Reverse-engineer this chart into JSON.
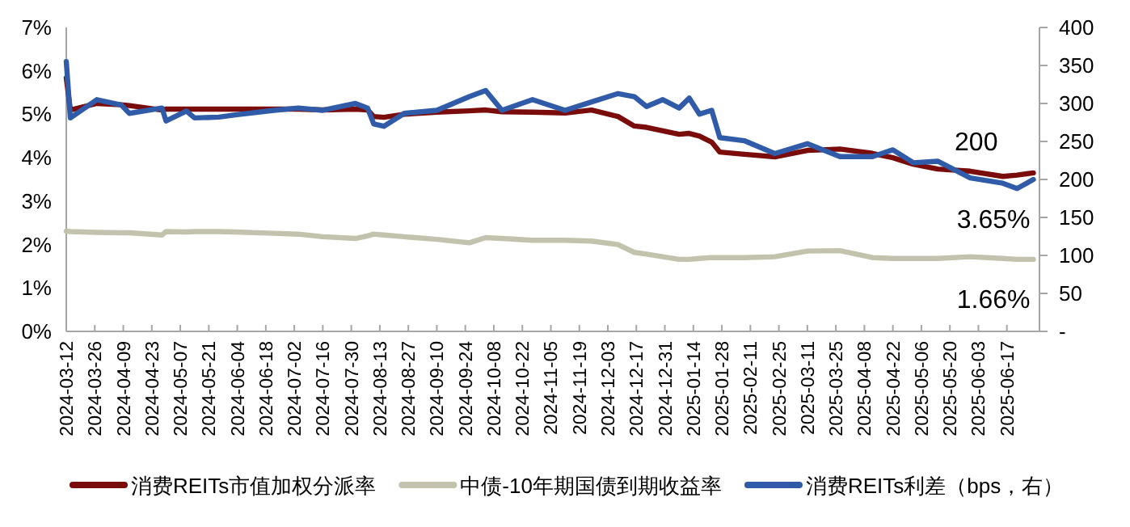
{
  "chart_data": {
    "type": "line",
    "x": [
      "2024-03-12",
      "2024-03-14",
      "2024-03-27",
      "2024-04-08",
      "2024-04-12",
      "2024-04-28",
      "2024-04-30",
      "2024-05-10",
      "2024-05-14",
      "2024-05-26",
      "2024-06-03",
      "2024-06-22",
      "2024-07-04",
      "2024-07-16",
      "2024-08-01",
      "2024-08-07",
      "2024-08-10",
      "2024-08-15",
      "2024-08-25",
      "2024-09-10",
      "2024-09-26",
      "2024-10-04",
      "2024-10-12",
      "2024-10-27",
      "2024-11-12",
      "2024-11-25",
      "2024-12-08",
      "2024-12-16",
      "2024-12-22",
      "2024-12-30",
      "2025-01-07",
      "2025-01-12",
      "2025-01-17",
      "2025-01-23",
      "2025-01-27",
      "2025-02-08",
      "2025-02-23",
      "2025-03-11",
      "2025-03-27",
      "2025-04-12",
      "2025-04-22",
      "2025-05-02",
      "2025-05-14",
      "2025-05-30",
      "2025-06-15",
      "2025-06-22",
      "2025-06-30"
    ],
    "series": [
      {
        "name": "消费REITs市值加权分派率",
        "color": "#7b0c0c",
        "values": [
          5.84,
          5.1,
          5.25,
          5.22,
          5.2,
          5.1,
          5.12,
          5.12,
          5.12,
          5.12,
          5.12,
          5.12,
          5.12,
          5.1,
          5.12,
          5.1,
          4.95,
          4.93,
          5.0,
          5.05,
          5.08,
          5.1,
          5.06,
          5.05,
          5.03,
          5.1,
          4.95,
          4.73,
          4.7,
          4.62,
          4.54,
          4.56,
          4.5,
          4.36,
          4.13,
          4.08,
          4.02,
          4.17,
          4.2,
          4.1,
          4.0,
          3.85,
          3.74,
          3.69,
          3.57,
          3.6,
          3.65
        ]
      },
      {
        "name": "中债-10年期国债到期收益率",
        "color": "#c3c3ad",
        "values": [
          2.31,
          2.3,
          2.28,
          2.27,
          2.27,
          2.22,
          2.3,
          2.29,
          2.3,
          2.3,
          2.29,
          2.26,
          2.24,
          2.18,
          2.14,
          2.2,
          2.24,
          2.22,
          2.18,
          2.12,
          2.04,
          2.16,
          2.14,
          2.1,
          2.1,
          2.08,
          2.0,
          1.82,
          1.78,
          1.72,
          1.66,
          1.66,
          1.68,
          1.7,
          1.7,
          1.7,
          1.72,
          1.85,
          1.86,
          1.7,
          1.68,
          1.68,
          1.68,
          1.72,
          1.68,
          1.66,
          1.66
        ]
      },
      {
        "name": "消费REITs利差（bps，右）",
        "color": "#2f5ba8",
        "axis": "y2",
        "values": [
          355,
          281,
          305,
          298,
          287,
          294,
          277,
          290,
          281,
          282,
          285,
          291,
          294,
          291,
          300,
          294,
          273,
          270,
          287,
          291,
          309,
          317,
          291,
          305,
          291,
          302,
          313,
          309,
          296,
          305,
          294,
          307,
          286,
          291,
          255,
          251,
          234,
          247,
          230,
          230,
          239,
          222,
          224,
          202,
          195,
          188,
          200
        ]
      }
    ],
    "xlim": [
      "2024-03-12",
      "2025-07-03"
    ],
    "xticks": [
      "2024-03-12",
      "2024-03-26",
      "2024-04-09",
      "2024-04-23",
      "2024-05-07",
      "2024-05-21",
      "2024-06-04",
      "2024-06-18",
      "2024-07-02",
      "2024-07-16",
      "2024-07-30",
      "2024-08-13",
      "2024-08-27",
      "2024-09-10",
      "2024-09-24",
      "2024-10-08",
      "2024-10-22",
      "2024-11-05",
      "2024-11-19",
      "2024-12-03",
      "2024-12-17",
      "2024-12-31",
      "2025-01-14",
      "2025-01-28",
      "2025-02-11",
      "2025-02-25",
      "2025-03-11",
      "2025-03-25",
      "2025-04-08",
      "2025-04-22",
      "2025-05-06",
      "2025-05-20",
      "2025-06-03",
      "2025-06-17"
    ],
    "ylim": [
      0,
      7
    ],
    "yticks": [
      {
        "value": 0,
        "label": "0%"
      },
      {
        "value": 1,
        "label": "1%"
      },
      {
        "value": 2,
        "label": "2%"
      },
      {
        "value": 3,
        "label": "3%"
      },
      {
        "value": 4,
        "label": "4%"
      },
      {
        "value": 5,
        "label": "5%"
      },
      {
        "value": 6,
        "label": "6%"
      },
      {
        "value": 7,
        "label": "7%"
      }
    ],
    "y2lim": [
      0,
      400
    ],
    "y2ticks": [
      {
        "value": 0,
        "label": "-"
      },
      50,
      100,
      150,
      200,
      250,
      300,
      350,
      400
    ],
    "annotations": [
      "3.65%",
      "1.66%",
      "200"
    ],
    "legend": "bottom",
    "grid": false,
    "marker": "none",
    "line_style": "solid"
  }
}
